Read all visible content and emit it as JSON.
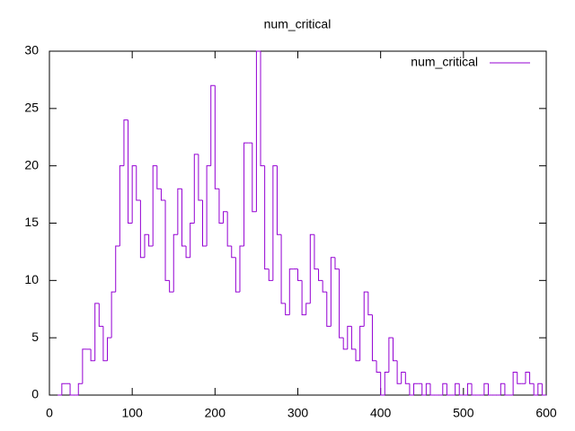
{
  "chart_data": {
    "type": "step",
    "title": "num_critical",
    "series": [
      {
        "name": "num_critical",
        "color": "#9400d3",
        "x": [
          10,
          15,
          20,
          25,
          30,
          35,
          40,
          45,
          50,
          55,
          60,
          65,
          70,
          75,
          80,
          85,
          90,
          95,
          100,
          105,
          110,
          115,
          120,
          125,
          130,
          135,
          140,
          145,
          150,
          155,
          160,
          165,
          170,
          175,
          180,
          185,
          190,
          195,
          200,
          205,
          210,
          215,
          220,
          225,
          230,
          235,
          240,
          245,
          250,
          255,
          260,
          265,
          270,
          275,
          280,
          285,
          290,
          295,
          300,
          305,
          310,
          315,
          320,
          325,
          330,
          335,
          340,
          345,
          350,
          355,
          360,
          365,
          370,
          375,
          380,
          385,
          390,
          395,
          400,
          405,
          410,
          415,
          420,
          425,
          430,
          435,
          440,
          445,
          450,
          455,
          460,
          465,
          470,
          475,
          480,
          485,
          490,
          495,
          500,
          505,
          510,
          515,
          520,
          525,
          530,
          535,
          540,
          545,
          550,
          555,
          560,
          565,
          570,
          575,
          580,
          585,
          590,
          595
        ],
        "values": [
          0,
          1,
          1,
          0,
          0,
          1,
          4,
          4,
          3,
          8,
          6,
          3,
          5,
          9,
          13,
          20,
          24,
          15,
          20,
          17,
          12,
          14,
          13,
          20,
          18,
          17,
          10,
          9,
          14,
          18,
          13,
          12,
          15,
          21,
          17,
          13,
          20,
          27,
          18,
          15,
          16,
          13,
          12,
          9,
          13,
          22,
          22,
          16,
          30,
          20,
          11,
          10,
          20,
          14,
          8,
          7,
          11,
          11,
          10,
          7,
          8,
          14,
          11,
          10,
          9,
          6,
          12,
          11,
          5,
          4,
          6,
          4,
          3,
          6,
          9,
          7,
          3,
          2,
          0,
          2,
          5,
          3,
          1,
          2,
          1,
          0,
          1,
          1,
          0,
          1,
          0,
          0,
          0,
          1,
          0,
          0,
          1,
          0,
          0,
          1,
          0,
          0,
          0,
          1,
          0,
          0,
          0,
          1,
          0,
          0,
          2,
          1,
          1,
          2,
          1,
          0,
          1,
          0
        ]
      }
    ],
    "xlim": [
      0,
      600
    ],
    "xticks": [
      0,
      100,
      200,
      300,
      400,
      500,
      600
    ],
    "ylim": [
      0,
      30
    ],
    "yticks": [
      0,
      5,
      10,
      15,
      20,
      25,
      30
    ],
    "legend": "top-right"
  }
}
